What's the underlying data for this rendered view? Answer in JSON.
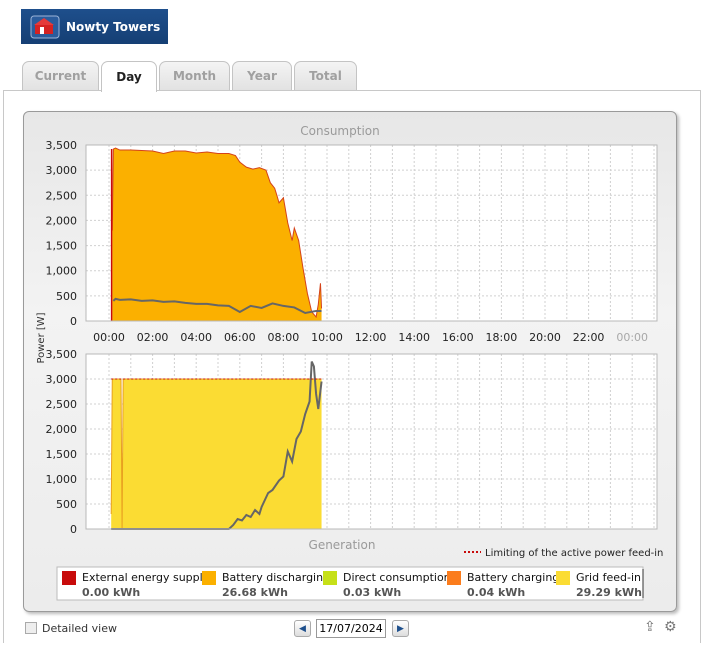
{
  "brand": {
    "name": "Nowty Towers"
  },
  "tabs": [
    {
      "label": "Current"
    },
    {
      "label": "Day"
    },
    {
      "label": "Month"
    },
    {
      "label": "Year"
    },
    {
      "label": "Total"
    }
  ],
  "chart_data": [
    {
      "type": "area",
      "title": "Consumption",
      "ylabel": "Power [W]",
      "xlim": [
        0,
        24
      ],
      "ylim": [
        0,
        3500
      ],
      "yticks": [
        "0",
        "500",
        "1,000",
        "1,500",
        "2,000",
        "2,500",
        "3,000",
        "3,500"
      ],
      "xtick_labels": [
        "00:00",
        "02:00",
        "04:00",
        "06:00",
        "08:00",
        "10:00",
        "12:00",
        "14:00",
        "16:00",
        "18:00",
        "20:00",
        "22:00",
        "00:00"
      ],
      "grid": true,
      "series": [
        {
          "name": "Battery discharging",
          "color": "#fbb000",
          "x": [
            0.15,
            0.2,
            0.3,
            0.5,
            1.0,
            2.0,
            2.5,
            3.0,
            3.5,
            4.0,
            4.5,
            5.0,
            5.5,
            5.8,
            6.0,
            6.3,
            6.6,
            6.9,
            7.2,
            7.4,
            7.6,
            7.7,
            7.8,
            8.0,
            8.2,
            8.4,
            8.5,
            8.7,
            8.9,
            9.1,
            9.3,
            9.5,
            9.6,
            9.7,
            9.75
          ],
          "values": [
            1800,
            3420,
            3440,
            3400,
            3400,
            3380,
            3330,
            3380,
            3380,
            3340,
            3360,
            3330,
            3330,
            3290,
            3160,
            3060,
            3020,
            3050,
            3000,
            2750,
            2640,
            2500,
            2350,
            2450,
            1950,
            1600,
            1850,
            1600,
            1050,
            550,
            180,
            80,
            330,
            750,
            250
          ]
        },
        {
          "name": "Direct consumption",
          "color": "#666666",
          "x": [
            0.2,
            0.3,
            0.5,
            1.0,
            1.5,
            2.0,
            2.5,
            3.0,
            3.5,
            4.0,
            4.5,
            5.0,
            5.5,
            6.0,
            6.5,
            7.0,
            7.5,
            8.0,
            8.5,
            9.0,
            9.5,
            9.75
          ],
          "values": [
            400,
            440,
            420,
            430,
            400,
            410,
            380,
            390,
            360,
            340,
            340,
            310,
            300,
            180,
            300,
            260,
            350,
            300,
            270,
            160,
            200,
            200
          ]
        }
      ]
    },
    {
      "type": "area",
      "title": "Generation",
      "ylim": [
        0,
        3500
      ],
      "yticks": [
        "0",
        "500",
        "1,000",
        "1,500",
        "2,000",
        "2,500",
        "3,000",
        "3,500"
      ],
      "grid": true,
      "series": [
        {
          "name": "Grid feed-in",
          "color": "#fbdc33",
          "x": [
            0.1,
            0.15,
            0.55,
            0.6,
            0.65,
            0.7,
            9.75
          ],
          "values": [
            300,
            3000,
            3000,
            0,
            3000,
            3000,
            3000
          ]
        },
        {
          "name": "Generation",
          "color": "#666666",
          "x": [
            0.1,
            5.5,
            5.7,
            5.9,
            6.1,
            6.3,
            6.5,
            6.7,
            6.9,
            7.0,
            7.3,
            7.5,
            7.8,
            8.0,
            8.2,
            8.4,
            8.6,
            8.8,
            9.0,
            9.2,
            9.3,
            9.4,
            9.5,
            9.6,
            9.75
          ],
          "values": [
            0,
            0,
            80,
            200,
            170,
            280,
            240,
            380,
            300,
            440,
            720,
            780,
            970,
            1050,
            1550,
            1350,
            1800,
            1950,
            2300,
            2550,
            3350,
            3250,
            2700,
            2400,
            2950
          ]
        }
      ],
      "annotation": "Limiting of the active power feed-in"
    }
  ],
  "legend": [
    {
      "label": "External energy supply",
      "value": "0.00 kWh",
      "color": "#c80b0b"
    },
    {
      "label": "Battery discharging",
      "value": "26.68 kWh",
      "color": "#fbb000"
    },
    {
      "label": "Direct consumption",
      "value": "0.03 kWh",
      "color": "#c6e018"
    },
    {
      "label": "Battery charging",
      "value": "0.04 kWh",
      "color": "#fb7c1c"
    },
    {
      "label": "Grid feed-in",
      "value": "29.29 kWh",
      "color": "#fbdc33"
    }
  ],
  "footer": {
    "detailed_view_label": "Detailed view",
    "date_value": "17/07/2024"
  }
}
